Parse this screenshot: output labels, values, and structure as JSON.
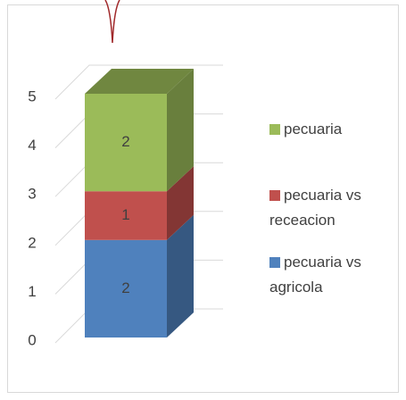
{
  "chart_data": {
    "type": "bar",
    "stacked": true,
    "three_d": true,
    "categories": [
      null
    ],
    "series": [
      {
        "name": "pecuaria vs agricola",
        "color": "#4f81bd",
        "values": [
          2
        ]
      },
      {
        "name": "pecuaria vs receacion",
        "color": "#c0504d",
        "values": [
          1
        ]
      },
      {
        "name": "pecuaria",
        "color": "#9bbb59",
        "values": [
          2
        ]
      }
    ],
    "ylim": [
      0,
      5
    ],
    "yticks": [
      0,
      1,
      2,
      3,
      4,
      5
    ],
    "grid": true,
    "legend": "right"
  }
}
